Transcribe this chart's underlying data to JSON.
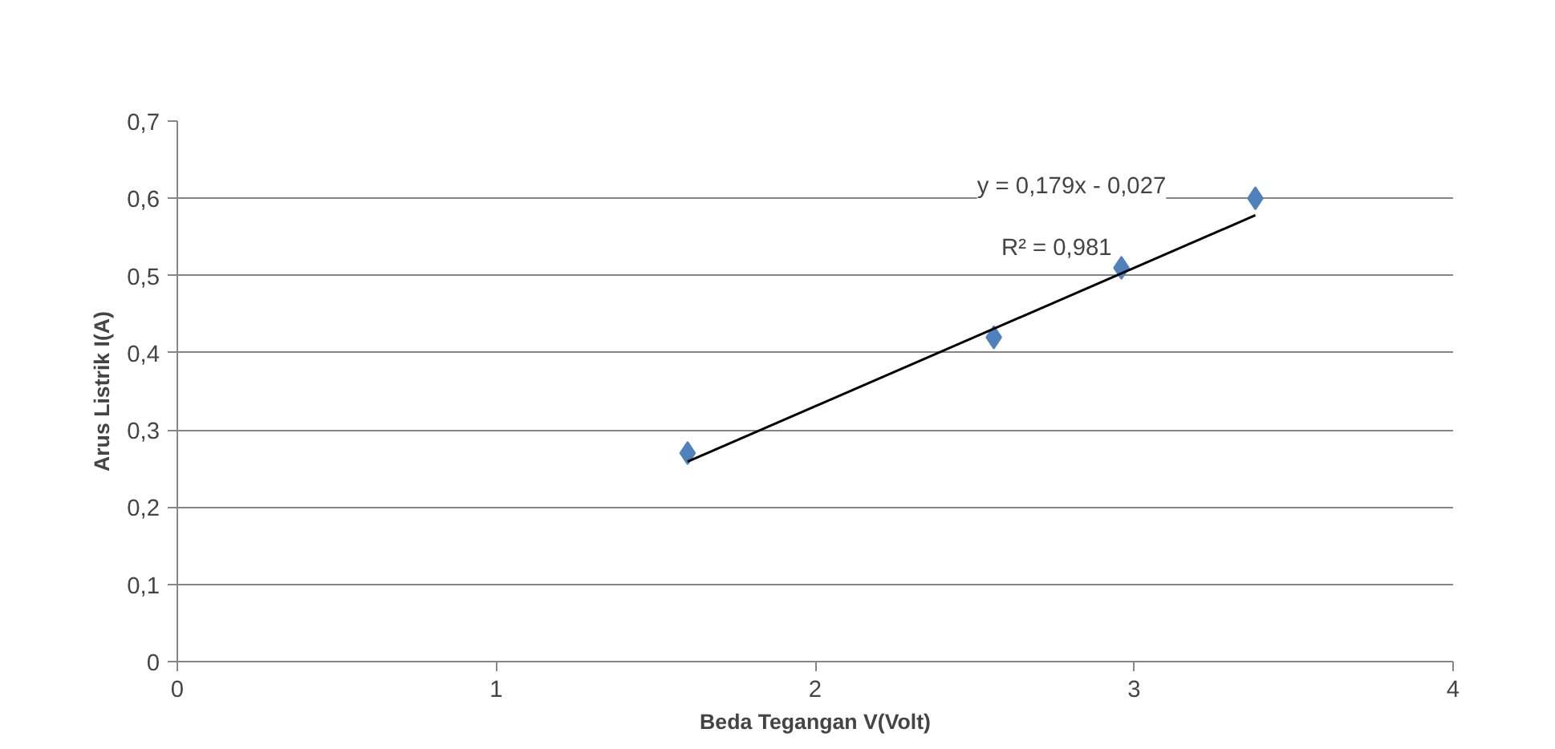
{
  "chart_data": {
    "type": "scatter",
    "xlabel": "Beda Tegangan V(Volt)",
    "ylabel": "Arus Listrik I(A)",
    "series": [
      {
        "color": "#4f81bd",
        "x": [
          1.6,
          2.56,
          2.96,
          3.38
        ],
        "values": [
          0.27,
          0.42,
          0.51,
          0.6
        ],
        "marker": "diamond"
      },
      {
        "type": "line",
        "color": "#000000",
        "x": [
          1.6,
          3.38
        ],
        "values": [
          0.259,
          0.578
        ],
        "marker": "none"
      }
    ],
    "annotations": [
      "y = 0,179x - 0,027",
      "R² = 0,981"
    ],
    "xlim": [
      0,
      4
    ],
    "xticks": [
      0,
      1,
      2,
      3,
      4
    ],
    "ylim": [
      0,
      0.7
    ],
    "yticks": [
      0,
      {
        "value": 0.1,
        "label": "0,1"
      },
      {
        "value": 0.2,
        "label": "0,2"
      },
      {
        "value": 0.3,
        "label": "0,3"
      },
      {
        "value": 0.4,
        "label": "0,4"
      },
      {
        "value": 0.5,
        "label": "0,5"
      },
      {
        "value": 0.6,
        "label": "0,6"
      },
      {
        "value": 0.7,
        "label": "0,7"
      }
    ],
    "grid": "y"
  }
}
